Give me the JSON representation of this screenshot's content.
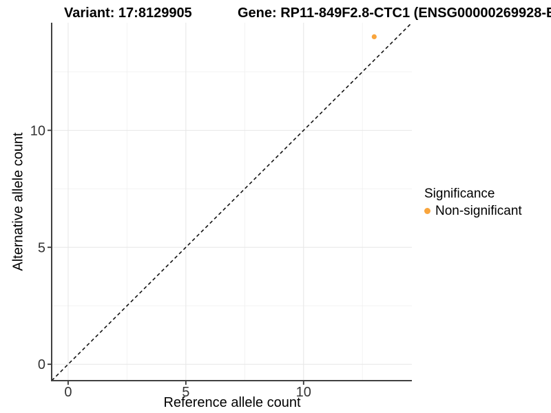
{
  "title": {
    "variant": "Variant: 17:8129905",
    "gene": "Gene: RP11-849F2.8-CTC1 (ENSG00000269928-E"
  },
  "chart_data": {
    "type": "scatter",
    "xlabel": "Reference allele count",
    "ylabel": "Alternative allele count",
    "xlim": [
      -0.7,
      14.6
    ],
    "ylim": [
      -0.7,
      14.6
    ],
    "x_major_ticks": [
      0,
      5,
      10
    ],
    "y_major_ticks": [
      0,
      5,
      10
    ],
    "x_minor_ticks": [
      2.5,
      7.5,
      12.5
    ],
    "y_minor_ticks": [
      2.5,
      7.5,
      12.5
    ],
    "grid": "major and minor gridlines, light gray on white panel",
    "points": [
      {
        "x": 13,
        "y": 14,
        "series": "Non-significant"
      }
    ],
    "reference_line": {
      "slope": 1,
      "intercept": 0,
      "style": "dashed",
      "color": "#111111"
    },
    "legend": {
      "title": "Significance",
      "position": "right",
      "items": [
        {
          "label": "Non-significant",
          "color": "#F9A53C"
        }
      ]
    },
    "colors": {
      "point": "#F9A53C",
      "axis_line": "#404040",
      "tick_mark": "#333333",
      "tick_label": "#333333",
      "grid_major": "#E6E6E6",
      "grid_minor": "#F2F2F2",
      "background": "#FFFFFF"
    }
  }
}
